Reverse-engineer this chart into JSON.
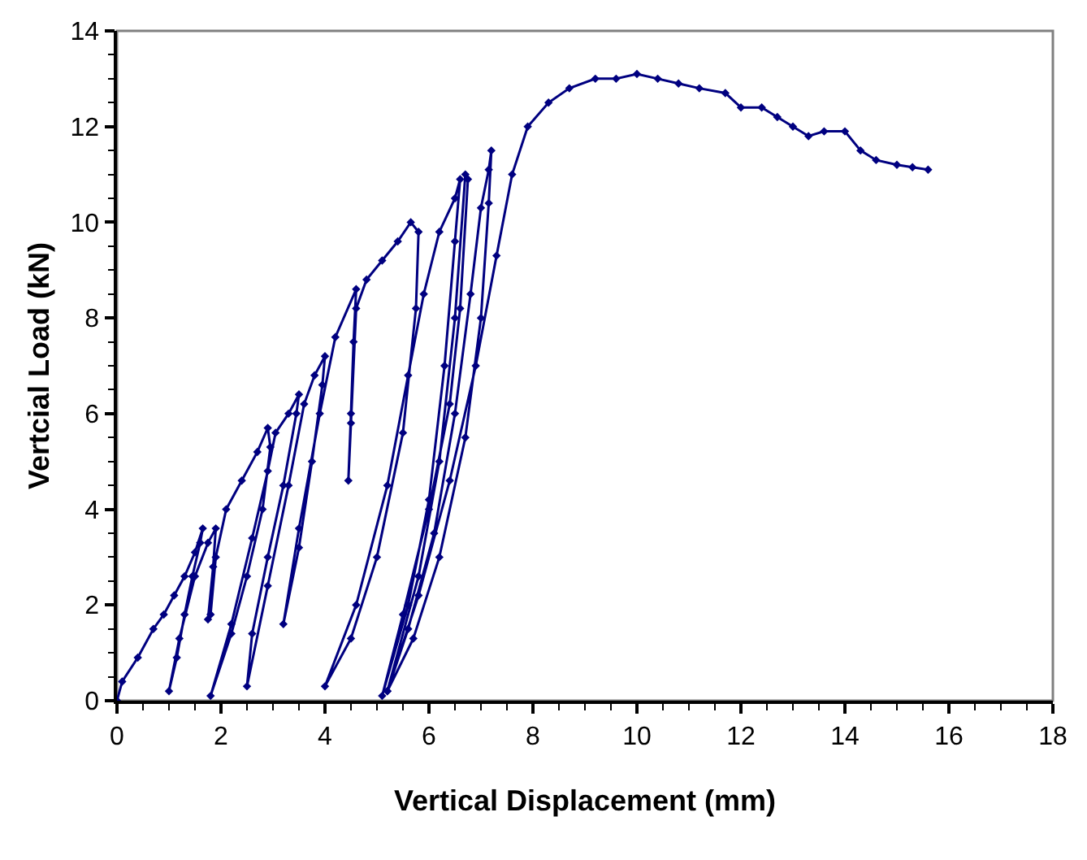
{
  "chart_data": {
    "type": "line",
    "xlabel": "Vertical Displacement (mm)",
    "ylabel": "Vertcial Load (kN)",
    "xlim": [
      0,
      18
    ],
    "xticks": [
      0,
      2,
      4,
      6,
      8,
      10,
      12,
      14,
      16,
      18
    ],
    "ylim": [
      0,
      14
    ],
    "yticks": [
      0,
      2,
      4,
      6,
      8,
      10,
      12,
      14
    ],
    "grid": false,
    "marker": "diamond",
    "line_style": "solid",
    "series": [
      {
        "color": "#000080",
        "x": [
          0,
          0.1,
          0.4,
          0.7,
          0.9,
          1.1,
          1.3,
          1.5,
          1.65,
          1.6,
          1.45,
          1.3,
          1.15,
          1.0,
          1.2,
          1.5,
          1.75,
          1.9,
          1.85,
          1.75,
          1.8,
          1.9,
          2.1,
          2.4,
          2.7,
          2.9,
          2.95,
          2.8,
          2.5,
          2.2,
          1.8,
          2.2,
          2.6,
          2.9,
          3.05,
          3.3,
          3.5,
          3.45,
          3.2,
          2.9,
          2.6,
          2.5,
          2.9,
          3.3,
          3.6,
          3.8,
          4.0,
          3.95,
          3.75,
          3.5,
          3.2,
          3.5,
          3.9,
          4.2,
          4.6,
          4.55,
          4.5,
          4.45,
          4.5,
          4.6,
          4.8,
          5.1,
          5.4,
          5.65,
          5.8,
          5.75,
          5.5,
          5.0,
          4.5,
          4.0,
          4.6,
          5.2,
          5.6,
          5.9,
          6.2,
          6.5,
          6.6,
          6.5,
          6.3,
          6.0,
          5.6,
          5.1,
          5.5,
          6.0,
          6.4,
          6.6,
          6.75,
          6.7,
          6.5,
          6.2,
          5.8,
          5.2,
          5.6,
          6.1,
          6.5,
          6.8,
          7.0,
          7.15,
          7.2,
          7.15,
          7.0,
          6.7,
          6.2,
          5.7,
          5.2,
          5.8,
          6.4,
          6.9,
          7.3,
          7.6,
          7.9,
          8.3,
          8.7,
          9.2,
          9.6,
          10.0,
          10.4,
          10.8,
          11.2,
          11.7,
          12.0,
          12.4,
          12.7,
          13.0,
          13.3,
          13.6,
          14.0,
          14.3,
          14.6,
          15.0,
          15.3,
          15.6
        ],
        "values": [
          0,
          0.4,
          0.9,
          1.5,
          1.8,
          2.2,
          2.6,
          3.1,
          3.6,
          3.3,
          2.6,
          1.8,
          0.9,
          0.2,
          1.3,
          2.6,
          3.3,
          3.6,
          2.8,
          1.7,
          1.8,
          3.0,
          4.0,
          4.6,
          5.2,
          5.7,
          5.3,
          4.0,
          2.6,
          1.4,
          0.1,
          1.6,
          3.4,
          4.8,
          5.6,
          6.0,
          6.4,
          6.0,
          4.5,
          3.0,
          1.4,
          0.3,
          2.4,
          4.5,
          6.2,
          6.8,
          7.2,
          6.6,
          5.0,
          3.2,
          1.6,
          3.6,
          6.0,
          7.6,
          8.6,
          7.5,
          6.0,
          4.6,
          5.8,
          8.2,
          8.8,
          9.2,
          9.6,
          10.0,
          9.8,
          8.2,
          5.6,
          3.0,
          1.3,
          0.3,
          2.0,
          4.5,
          6.8,
          8.5,
          9.8,
          10.5,
          10.9,
          9.6,
          7.0,
          4.2,
          2.0,
          0.1,
          1.8,
          4.0,
          6.2,
          8.2,
          10.9,
          11.0,
          8.0,
          5.0,
          2.6,
          0.2,
          1.5,
          3.5,
          6.0,
          8.5,
          10.3,
          11.1,
          11.5,
          10.4,
          8.0,
          5.5,
          3.0,
          1.3,
          0.2,
          2.2,
          4.6,
          7.0,
          9.3,
          11.0,
          12.0,
          12.5,
          12.8,
          13.0,
          13.0,
          13.1,
          13.0,
          12.9,
          12.8,
          12.7,
          12.4,
          12.4,
          12.2,
          12.0,
          11.8,
          11.9,
          11.9,
          11.5,
          11.3,
          11.2,
          11.15,
          11.1
        ]
      }
    ]
  }
}
